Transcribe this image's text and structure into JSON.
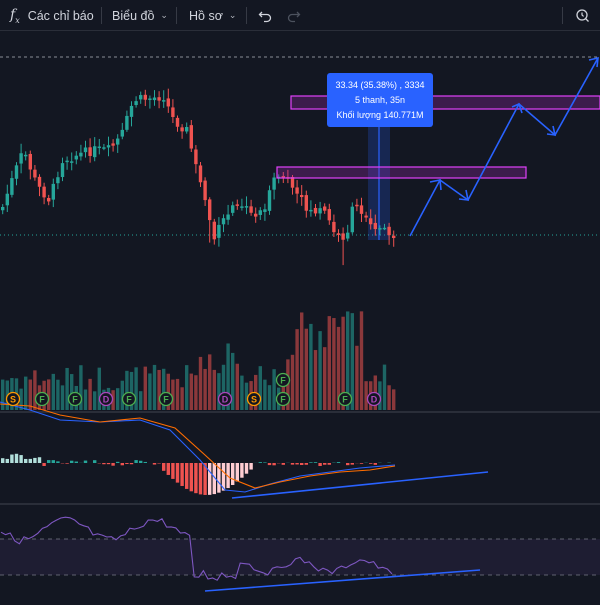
{
  "toolbar": {
    "fx_label": "f",
    "fx_sub": "x",
    "indicators_label": "Các chỉ báo",
    "chart_type_label": "Biểu đồ",
    "profile_label": "Hồ sơ",
    "undo_icon": "undo-icon",
    "redo_icon": "redo-icon",
    "right_icon": "quick-search-icon"
  },
  "measure_tooltip": {
    "line1": "33.34 (35.38%) , 3334",
    "line2": "5 thanh, 35n",
    "line3": "Khối lượng 140.771M"
  },
  "colors": {
    "background": "#131722",
    "up": "#26a69a",
    "down": "#ef5350",
    "drawing": "#2962ff",
    "zone": "#9c27b0",
    "macd_line": "#2962ff",
    "signal_line": "#ff6d00"
  },
  "event_markers": [
    {
      "letter": "S",
      "kind": "split"
    },
    {
      "letter": "F",
      "kind": "financials"
    },
    {
      "letter": "F",
      "kind": "financials"
    },
    {
      "letter": "D",
      "kind": "dividend"
    },
    {
      "letter": "F",
      "kind": "financials"
    },
    {
      "letter": "F",
      "kind": "financials"
    },
    {
      "letter": "D",
      "kind": "dividend"
    },
    {
      "letter": "S",
      "kind": "split"
    },
    {
      "letter": "F",
      "kind": "financials"
    },
    {
      "letter": "F",
      "kind": "financials"
    },
    {
      "letter": "D",
      "kind": "dividend"
    }
  ],
  "chart_data": {
    "type": "candlestick",
    "panes": [
      "price",
      "volume",
      "macd",
      "rsi"
    ],
    "bars_visible": 86,
    "price_scale_visible": false,
    "drawings": [
      "price-range-measure",
      "resistance-zone-upper",
      "resistance-zone-lower",
      "projection-arrows",
      "macd-divergence-line",
      "rsi-divergence-line"
    ]
  }
}
